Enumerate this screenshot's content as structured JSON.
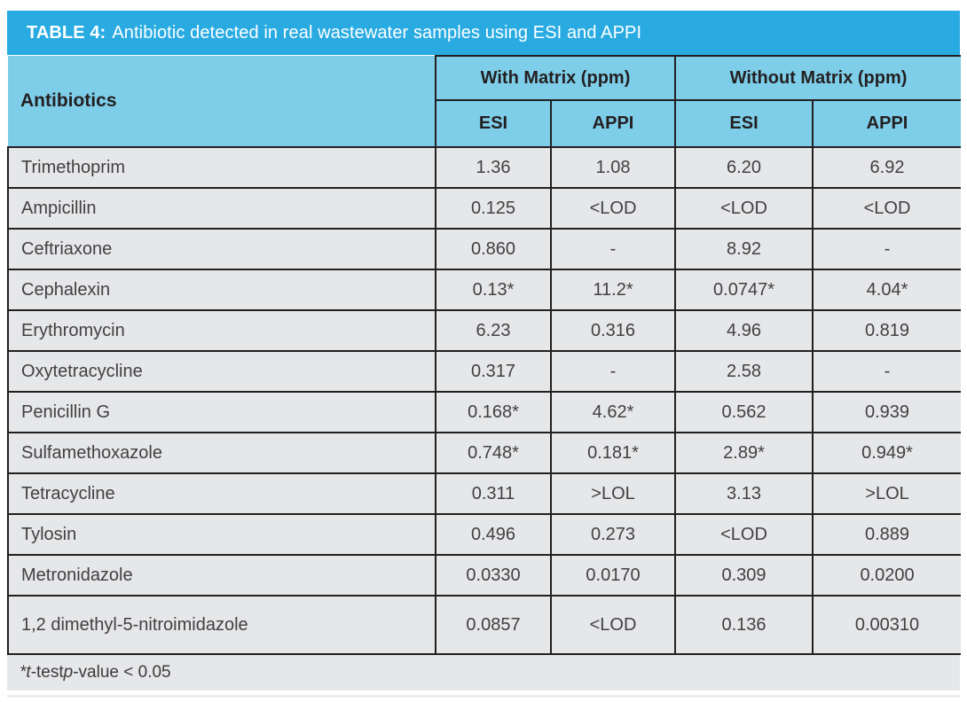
{
  "title": {
    "label": "TABLE 4:",
    "caption": "Antibiotic detected in real wastewater samples using ESI and APPI"
  },
  "header": {
    "antibiotics": "Antibiotics",
    "groups": [
      {
        "label": "With Matrix (ppm)",
        "subs": [
          "ESI",
          "APPI"
        ]
      },
      {
        "label": "Without Matrix (ppm)",
        "subs": [
          "ESI",
          "APPI"
        ]
      }
    ]
  },
  "rows": [
    {
      "name": "Trimethoprim",
      "values": [
        "1.36",
        "1.08",
        "6.20",
        "6.92"
      ]
    },
    {
      "name": "Ampicillin",
      "values": [
        "0.125",
        "<LOD",
        "<LOD",
        "<LOD"
      ]
    },
    {
      "name": "Ceftriaxone",
      "values": [
        "0.860",
        "-",
        "8.92",
        "-"
      ]
    },
    {
      "name": "Cephalexin",
      "values": [
        "0.13*",
        "11.2*",
        "0.0747*",
        "4.04*"
      ]
    },
    {
      "name": "Erythromycin",
      "values": [
        "6.23",
        "0.316",
        "4.96",
        "0.819"
      ]
    },
    {
      "name": "Oxytetracycline",
      "values": [
        "0.317",
        "-",
        "2.58",
        "-"
      ]
    },
    {
      "name": "Penicillin G",
      "values": [
        "0.168*",
        "4.62*",
        "0.562",
        "0.939"
      ]
    },
    {
      "name": "Sulfamethoxazole",
      "values": [
        "0.748*",
        "0.181*",
        "2.89*",
        "0.949*"
      ]
    },
    {
      "name": "Tetracycline",
      "values": [
        "0.311",
        ">LOL",
        "3.13",
        ">LOL"
      ]
    },
    {
      "name": "Tylosin",
      "values": [
        "0.496",
        "0.273",
        "<LOD",
        "0.889"
      ]
    },
    {
      "name": "Metronidazole",
      "values": [
        "0.0330",
        "0.0170",
        "0.309",
        "0.0200"
      ]
    },
    {
      "name": "1,2 dimethyl-5-nitroimidazole",
      "values": [
        "0.0857",
        "<LOD",
        "0.136",
        "0.00310"
      ]
    }
  ],
  "footnote": {
    "star_t": "*t",
    "test": "-test ",
    "p": "p",
    "rest": "-value < 0.05"
  },
  "colors": {
    "title_bar": "#29ABE2",
    "header_fill": "#7ECEE9",
    "row_fill": "#E6E7E8",
    "rule": "#231F20",
    "title_text": "#FFFFFF",
    "header_text": "#231F20",
    "body_text": "#414042"
  }
}
